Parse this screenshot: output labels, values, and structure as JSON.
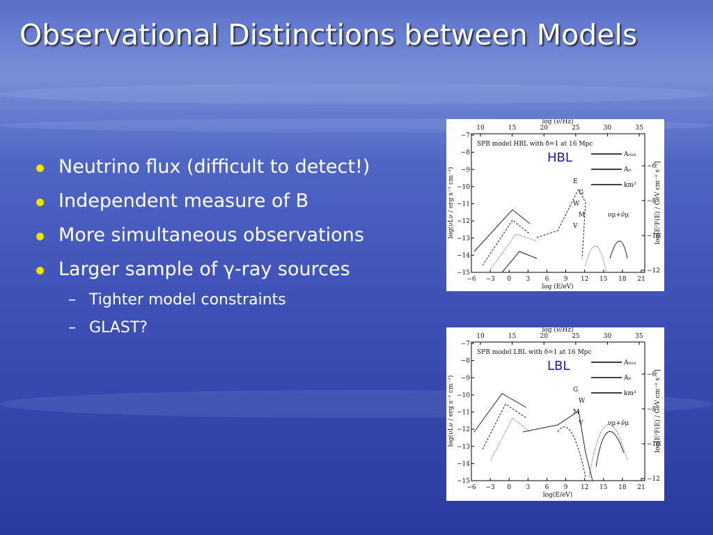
{
  "title": "Observational Distinctions between Models",
  "bullets": [
    {
      "text": "Neutrino flux (difficult to detect!)"
    },
    {
      "text": "Independent measure of B"
    },
    {
      "text": "More simultaneous observations"
    },
    {
      "text": "Larger sample of γ-ray sources",
      "sub_bullets": [
        "Tighter model constraints",
        "GLAST?"
      ]
    }
  ],
  "figures": [
    {
      "label": "HBL",
      "caption": "SPB model HBL with δ=1 at 16 Mpc",
      "top_axis_label": "log (ν/Hz)",
      "top_ticks": [
        "10",
        "15",
        "20",
        "25",
        "30",
        "35"
      ],
      "bottom_axis_label": "log (E/eV)",
      "bottom_ticks": [
        "−6",
        "−3",
        "0",
        "3",
        "6",
        "9",
        "12",
        "15",
        "18",
        "21"
      ],
      "left_axis_label": "log(νLν / erg s⁻¹ cm⁻²)",
      "left_ticks": [
        "−7",
        "−8",
        "−9",
        "−10",
        "−11",
        "−12",
        "−13",
        "−14",
        "−15"
      ],
      "right_axis_label": "log[E²F(E) / GeV cm⁻² s⁻¹]",
      "right_ticks": [
        "−6",
        "−8",
        "−10",
        "−12"
      ],
      "legend": [
        "A₉₁₀",
        "A₉",
        "km³"
      ],
      "markers": [
        "E",
        "G",
        "W",
        "M",
        "V"
      ],
      "neutrino_label": "νμ+ν̄μ"
    },
    {
      "label": "LBL",
      "caption": "SPB model LBL with δ=1 at 16 Mpc",
      "top_axis_label": "log (ν/Hz)",
      "top_ticks": [
        "10",
        "15",
        "20",
        "25",
        "30",
        "35"
      ],
      "bottom_axis_label": "log(E/eV)",
      "bottom_ticks": [
        "−6",
        "−3",
        "0",
        "3",
        "6",
        "9",
        "12",
        "15",
        "18",
        "21"
      ],
      "left_axis_label": "log(νLν / erg s⁻¹ cm⁻²)",
      "left_ticks": [
        "−7",
        "−8",
        "−9",
        "−10",
        "−11",
        "−12",
        "−13",
        "−14",
        "−15"
      ],
      "right_axis_label": "log[E²F(E) / GeV cm⁻² s⁻¹]",
      "right_ticks": [
        "−6",
        "−8",
        "−10",
        "−12"
      ],
      "legend": [
        "A₉₁₀",
        "A₉",
        "km³"
      ],
      "markers": [
        "G",
        "W",
        "M",
        "V"
      ],
      "neutrino_label": "νμ+ν̄μ"
    }
  ]
}
